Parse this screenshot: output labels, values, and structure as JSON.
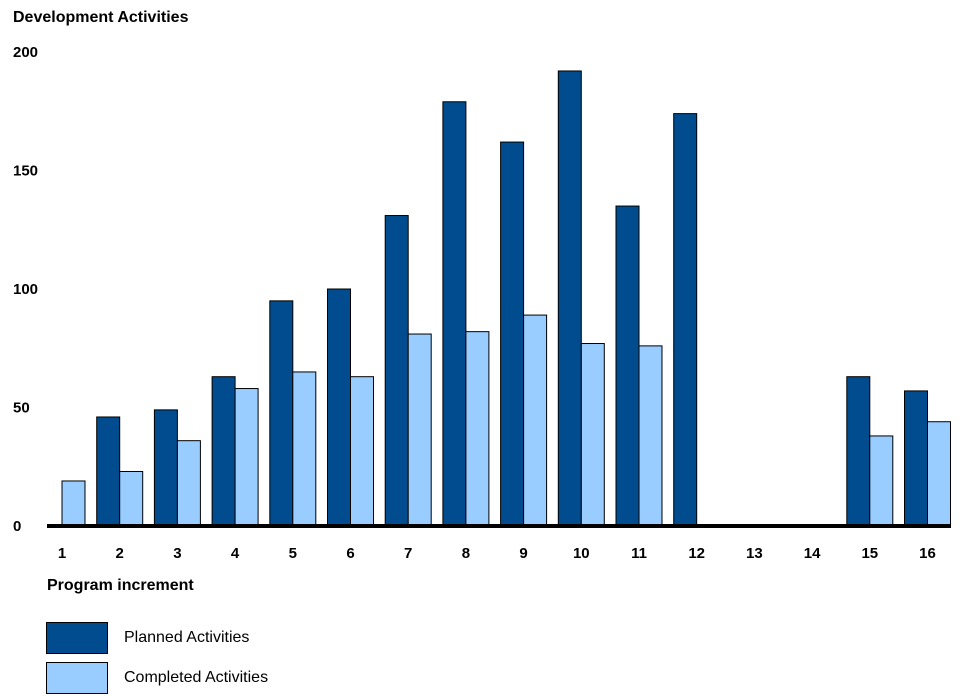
{
  "chart_data": {
    "type": "bar",
    "title": "Development Activities",
    "xlabel": "Program increment",
    "ylabel": "",
    "ylim": [
      0,
      200
    ],
    "yticks": [
      "0",
      "50",
      "100",
      "150",
      "200"
    ],
    "categories": [
      "1",
      "2",
      "3",
      "4",
      "5",
      "6",
      "7",
      "8",
      "9",
      "10",
      "11",
      "12",
      "13",
      "14",
      "15",
      "16"
    ],
    "series": [
      {
        "name": "Planned Activities",
        "color": "#004c8e",
        "values": [
          0,
          46,
          49,
          63,
          95,
          100,
          131,
          179,
          162,
          192,
          135,
          174,
          0,
          0,
          63,
          57
        ]
      },
      {
        "name": "Completed Activities",
        "color": "#99ccff",
        "values": [
          19,
          23,
          36,
          58,
          65,
          63,
          81,
          82,
          89,
          77,
          76,
          0,
          0,
          0,
          38,
          44
        ]
      }
    ],
    "grid": false,
    "legend_position": "bottom-left"
  }
}
